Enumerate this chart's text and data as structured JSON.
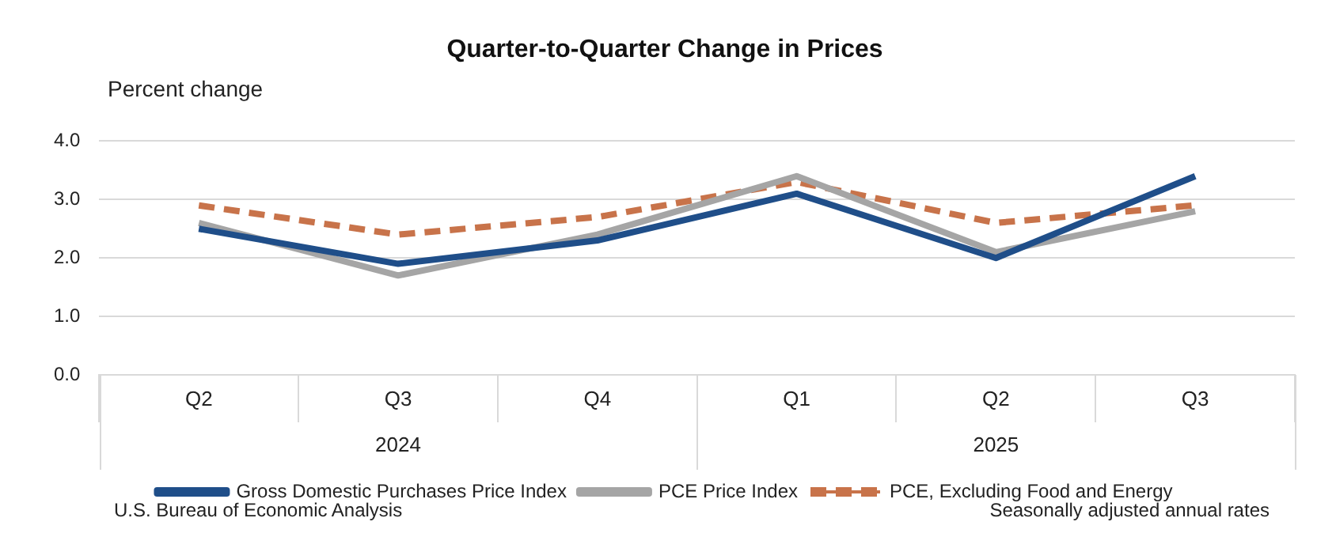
{
  "chart_data": {
    "type": "line",
    "title": "Quarter-to-Quarter Change in Prices",
    "ylabel": "Percent change",
    "categories": [
      "Q2",
      "Q3",
      "Q4",
      "Q1",
      "Q2",
      "Q3"
    ],
    "series": [
      {
        "name": "Gross Domestic Purchases Price Index",
        "color": "#1f4e89",
        "values": [
          2.5,
          1.9,
          2.3,
          3.1,
          2.0,
          3.4
        ],
        "line_style": "solid"
      },
      {
        "name": "PCE Price Index",
        "color": "#a5a5a5",
        "values": [
          2.6,
          1.7,
          2.4,
          3.4,
          2.1,
          2.8
        ],
        "line_style": "solid"
      },
      {
        "name": "PCE, Excluding Food and Energy",
        "color": "#c8734a",
        "values": [
          2.9,
          2.4,
          2.7,
          3.3,
          2.6,
          2.9
        ],
        "line_style": "dashed"
      }
    ],
    "ylim": [
      0,
      4
    ],
    "yticks": [
      {
        "value": 0,
        "label": "0.0"
      },
      {
        "value": 1,
        "label": "1.0"
      },
      {
        "value": 2,
        "label": "2.0"
      },
      {
        "value": 3,
        "label": "3.0"
      },
      {
        "value": 4,
        "label": "4.0"
      }
    ],
    "grid": "y",
    "legend": "bottom",
    "marker": "none",
    "annotations": [
      "2024",
      "2025",
      "U.S. Bureau of Economic Analysis",
      "Seasonally adjusted annual rates"
    ]
  }
}
